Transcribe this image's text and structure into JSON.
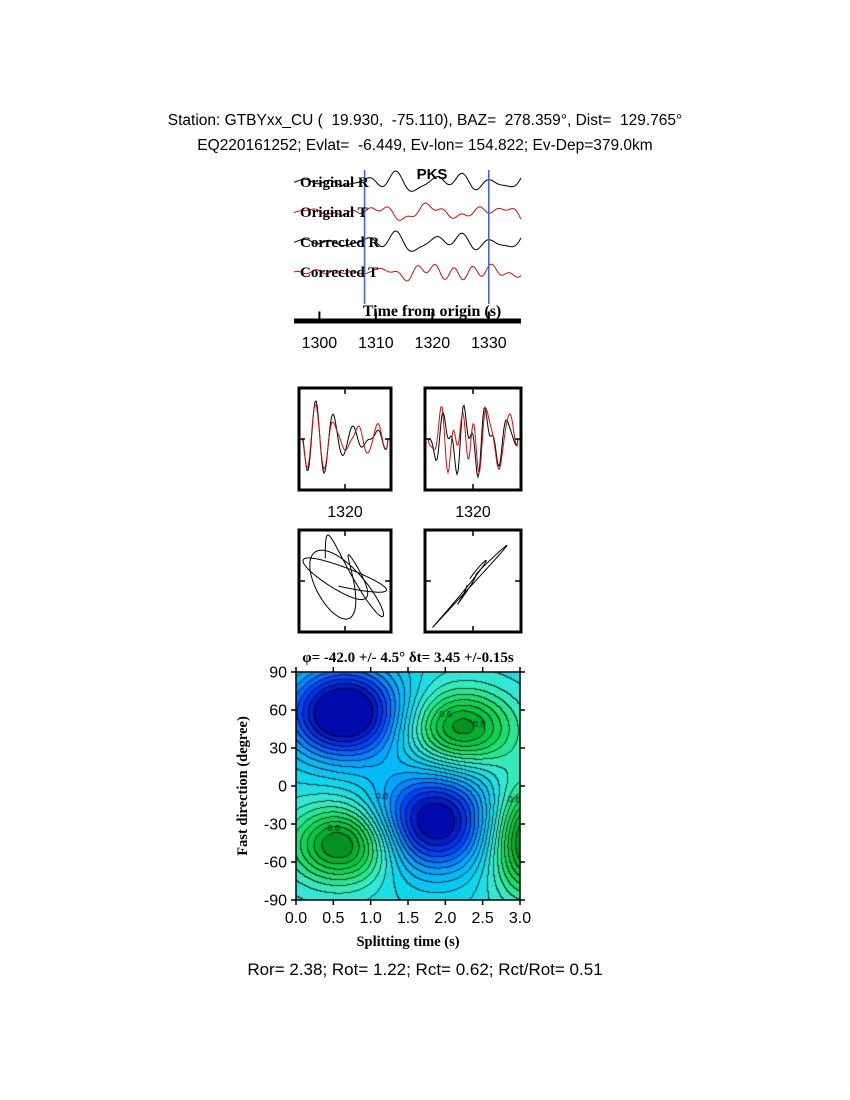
{
  "header": {
    "line1": "Station: GTBYxx_CU (  19.930,  -75.110), BAZ=  278.359°, Dist=  129.765°",
    "line2": "EQ220161252; Evlat=  -6.449, Ev-lon= 154.822; Ev-Dep=379.0km"
  },
  "footer": {
    "stats": "Ror= 2.38; Rot= 1.22; Rct= 0.62; Rct/Rot= 0.51",
    "values": {
      "Ror": 2.38,
      "Rot": 1.22,
      "Rct": 0.62,
      "Rct_over_Rot": 0.51
    }
  },
  "chart_data": [
    {
      "id": "seismograms",
      "type": "line",
      "phase": "PKS",
      "phase_color": "#dd2222",
      "series": [
        {
          "name": "Original R",
          "color": "#000000"
        },
        {
          "name": "Original T",
          "color": "#cc1111"
        },
        {
          "name": "Corrected R",
          "color": "#000000"
        },
        {
          "name": "Corrected T",
          "color": "#cc1111"
        }
      ],
      "xlabel": "Time from origin (s)",
      "x_ticks": [
        1300,
        1310,
        1320,
        1330
      ],
      "xlim": [
        1295.5,
        1335.7
      ],
      "pick_window": [
        1308,
        1330
      ],
      "window_color": "#3a5fcd"
    },
    {
      "id": "window-comparison",
      "type": "line",
      "x_ticks": [
        "1320",
        "1320"
      ]
    },
    {
      "id": "particle-motion",
      "type": "line"
    },
    {
      "id": "error-surface",
      "type": "heatmap",
      "title": "φ= -42.0 +/- 4.5° δt= 3.45 +/-0.15s",
      "xlabel": "Splitting time (s)",
      "ylabel": "Fast direction (degree)",
      "xlim": [
        0,
        3
      ],
      "ylim": [
        -90,
        90
      ],
      "x_ticks": [
        "0.0",
        "0.5",
        "1.0",
        "1.5",
        "2.0",
        "2.5",
        "3.0"
      ],
      "y_ticks": [
        "90",
        "60",
        "30",
        "0",
        "-30",
        "-60",
        "-90"
      ],
      "best_fit": {
        "fast_direction_deg": -42.0,
        "fast_direction_err_deg": 4.5,
        "split_time_s": 3.45,
        "split_time_err_s": 0.15
      },
      "base_level": 0.52,
      "contour_interval": 0.05,
      "features": [
        {
          "dt": 0.65,
          "phi": 58,
          "amp": -0.62,
          "sdt": 0.55,
          "sphi": 26,
          "kind": "minimum"
        },
        {
          "dt": 1.85,
          "phi": -28,
          "amp": -0.55,
          "sdt": 0.55,
          "sphi": 28,
          "kind": "minimum"
        },
        {
          "dt": 2.2,
          "phi": 46,
          "amp": 0.42,
          "sdt": 0.5,
          "sphi": 21,
          "kind": "maximum"
        },
        {
          "dt": 0.62,
          "phi": -46,
          "amp": 0.46,
          "sdt": 0.48,
          "sphi": 21,
          "kind": "maximum"
        },
        {
          "dt": 3.15,
          "phi": -42,
          "amp": 0.52,
          "sdt": 0.38,
          "sphi": 30,
          "kind": "maximum"
        }
      ],
      "contour_labels": [
        {
          "v": "0.6",
          "dt": 2.0,
          "phi": 57
        },
        {
          "v": "0.8",
          "dt": 2.45,
          "phi": 49
        },
        {
          "v": "0.6",
          "dt": 0.5,
          "phi": -33
        },
        {
          "v": "0.8",
          "dt": 1.15,
          "phi": -8
        },
        {
          "v": "0.8",
          "dt": 2.92,
          "phi": -10
        }
      ]
    }
  ]
}
